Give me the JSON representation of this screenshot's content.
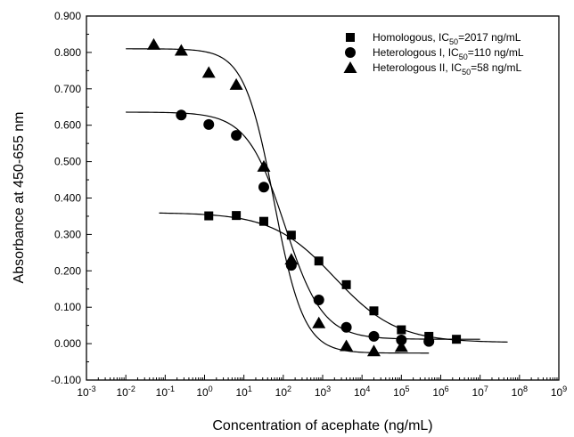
{
  "chart_data": {
    "type": "scatter",
    "title": "",
    "xlabel": "Concentration of acephate (ng/mL)",
    "ylabel": "Absorbance at 450-655 nm",
    "xscale": "log",
    "xlim": [
      0.001,
      1000000000
    ],
    "ylim": [
      -0.1,
      0.9
    ],
    "x_tick_labels": [
      {
        "base": "10",
        "exp": "-3"
      },
      {
        "base": "10",
        "exp": "-2"
      },
      {
        "base": "10",
        "exp": "-1"
      },
      {
        "base": "10",
        "exp": "0"
      },
      {
        "base": "10",
        "exp": "1"
      },
      {
        "base": "10",
        "exp": "2"
      },
      {
        "base": "10",
        "exp": "3"
      },
      {
        "base": "10",
        "exp": "4"
      },
      {
        "base": "10",
        "exp": "5"
      },
      {
        "base": "10",
        "exp": "6"
      },
      {
        "base": "10",
        "exp": "7"
      },
      {
        "base": "10",
        "exp": "8"
      },
      {
        "base": "10",
        "exp": "9"
      }
    ],
    "y_ticks": [
      -0.1,
      0.0,
      0.1,
      0.2,
      0.3,
      0.4,
      0.5,
      0.6,
      0.7,
      0.8,
      0.9
    ],
    "y_tick_labels": [
      "-0.100",
      "0.000",
      "0.100",
      "0.200",
      "0.300",
      "0.400",
      "0.500",
      "0.600",
      "0.700",
      "0.800",
      "0.900"
    ],
    "legend_position": "top-right",
    "grid": false,
    "series": [
      {
        "name": "Homologous",
        "legend_prefix": "Homologous, IC",
        "legend_sub": "50",
        "legend_suffix": "=2017 ng/mL",
        "marker": "square",
        "x": [
          1.28,
          6.4,
          32,
          160,
          800,
          4000,
          20000,
          100000,
          500000,
          2500000
        ],
        "y": [
          0.351,
          0.352,
          0.336,
          0.298,
          0.227,
          0.162,
          0.09,
          0.038,
          0.02,
          0.012
        ],
        "fit": {
          "top": 0.36,
          "bottom": 0.003,
          "ic50": 2017,
          "slope": 0.55,
          "xmin": 0.07,
          "xmax": 50000000
        }
      },
      {
        "name": "Heterologous I",
        "legend_prefix": "Heterologous I, IC",
        "legend_sub": "50",
        "legend_suffix": "=110 ng/mL",
        "marker": "circle",
        "x": [
          0.256,
          1.28,
          6.4,
          32,
          160,
          800,
          4000,
          20000,
          100000,
          500000
        ],
        "y": [
          0.628,
          0.602,
          0.572,
          0.43,
          0.215,
          0.12,
          0.045,
          0.02,
          0.01,
          0.006
        ],
        "fit": {
          "top": 0.636,
          "bottom": 0.012,
          "ic50": 110,
          "slope": 0.9,
          "xmin": 0.01,
          "xmax": 10000000
        }
      },
      {
        "name": "Heterologous II",
        "legend_prefix": "Heterologous II, IC",
        "legend_sub": "50",
        "legend_suffix": "=58 ng/mL",
        "marker": "triangle",
        "x": [
          0.0512,
          0.256,
          1.28,
          6.4,
          32,
          160,
          800,
          4000,
          20000,
          100000
        ],
        "y": [
          0.822,
          0.806,
          0.745,
          0.712,
          0.487,
          0.232,
          0.057,
          -0.006,
          -0.02,
          -0.008
        ],
        "fit": {
          "top": 0.81,
          "bottom": -0.026,
          "ic50": 58,
          "slope": 1.15,
          "xmin": 0.01,
          "xmax": 500000
        }
      }
    ]
  }
}
